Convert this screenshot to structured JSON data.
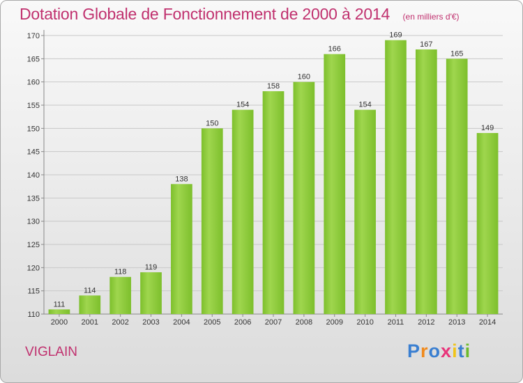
{
  "chart_data": {
    "type": "bar",
    "title": "Dotation Globale de Fonctionnement de 2000 à 2014",
    "unit_note": "(en milliers d'€)",
    "categories": [
      "2000",
      "2001",
      "2002",
      "2003",
      "2004",
      "2005",
      "2006",
      "2007",
      "2008",
      "2009",
      "2010",
      "2011",
      "2012",
      "2013",
      "2014"
    ],
    "values": [
      111,
      114,
      118,
      119,
      138,
      150,
      154,
      158,
      160,
      166,
      154,
      169,
      167,
      165,
      149
    ],
    "ylim": [
      110,
      170
    ],
    "yticks": [
      110,
      115,
      120,
      125,
      130,
      135,
      140,
      145,
      150,
      155,
      160,
      165,
      170
    ],
    "grid": true,
    "bar_color": "#7dbf2c",
    "bar_color_light": "#9fd64e",
    "xlabel": "",
    "ylabel": ""
  },
  "footer": {
    "location": "VIGLAIN",
    "logo_letters": [
      "P",
      "r",
      "o",
      "x",
      "i",
      "t",
      "i"
    ],
    "logo_colors": [
      "#3a7fd1",
      "#f08a1c",
      "#3a7fd1",
      "#e8347a",
      "#f0c419",
      "#3a7fd1",
      "#6dbb2c"
    ]
  }
}
